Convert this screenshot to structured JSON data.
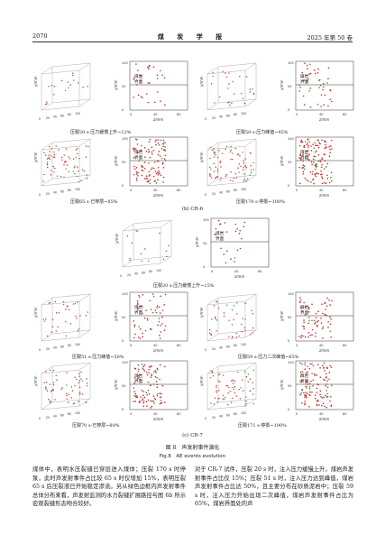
{
  "header": {
    "page_number": "2070",
    "journal": "煤 炭 学 报",
    "issue": "2025 年第 50 卷"
  },
  "panels": [
    {
      "caption": "压裂20 s-压力缓慢上升~12%"
    },
    {
      "caption": "压裂58 s-压力峰值~45%"
    },
    {
      "caption": "压裂65 s-已穿层~85%"
    },
    {
      "caption": "压裂170 s-停泵~100%"
    },
    {
      "caption": "压裂20 s-压力缓慢上升~15%"
    },
    {
      "caption": "压裂51 s-压力峰值~50%"
    },
    {
      "caption": "压裂59 s-压力二次峰值~65%"
    },
    {
      "caption": "压裂70 s-已穿层~80%"
    },
    {
      "caption": "压裂171 s-停泵~100%"
    }
  ],
  "subcaptions": {
    "cr6": "(b) CR-6",
    "cr7": "(c) CR-7"
  },
  "plot_text": {
    "axis_y": "y/mm",
    "axis_z": "z/mm",
    "axis_x": "x/mm",
    "ticks_0_100": [
      "0",
      "20",
      "40",
      "60",
      "80",
      "100"
    ],
    "interface_line1": "煤岩",
    "interface_line2": "界面"
  },
  "figure": {
    "title_cn": "图 8　声发射事件演化",
    "title_en": "Fig.8　AE events evolution"
  },
  "body": {
    "left": "煤体中，表明水压裂缝已穿层进入煤体；压裂 170 s 时停泵，此时声发射事件占比较 65 s 时仅增加 15%，表明压裂 65 s 后压裂液已开始稳定渗流。另从绿色边框内声发射事件总体分布来看，声发射监测的水力裂缝扩展路径与图 6b 所示宏观裂缝形态吻合较好。",
    "right": "对于 CR-7 试件，压裂 20 s 时，注入压力缓慢上升，煤岩声发射事件占比仅 15%；压裂 51 s 时，注入压力达到峰值，煤岩声发射事件占比达 50%，且主要分布在砂质泥岩中；压裂 59 s 时，注入压力开始出现二次峰值，煤岩声发射事件占比为 65%，煤岩界面处的声"
  }
}
